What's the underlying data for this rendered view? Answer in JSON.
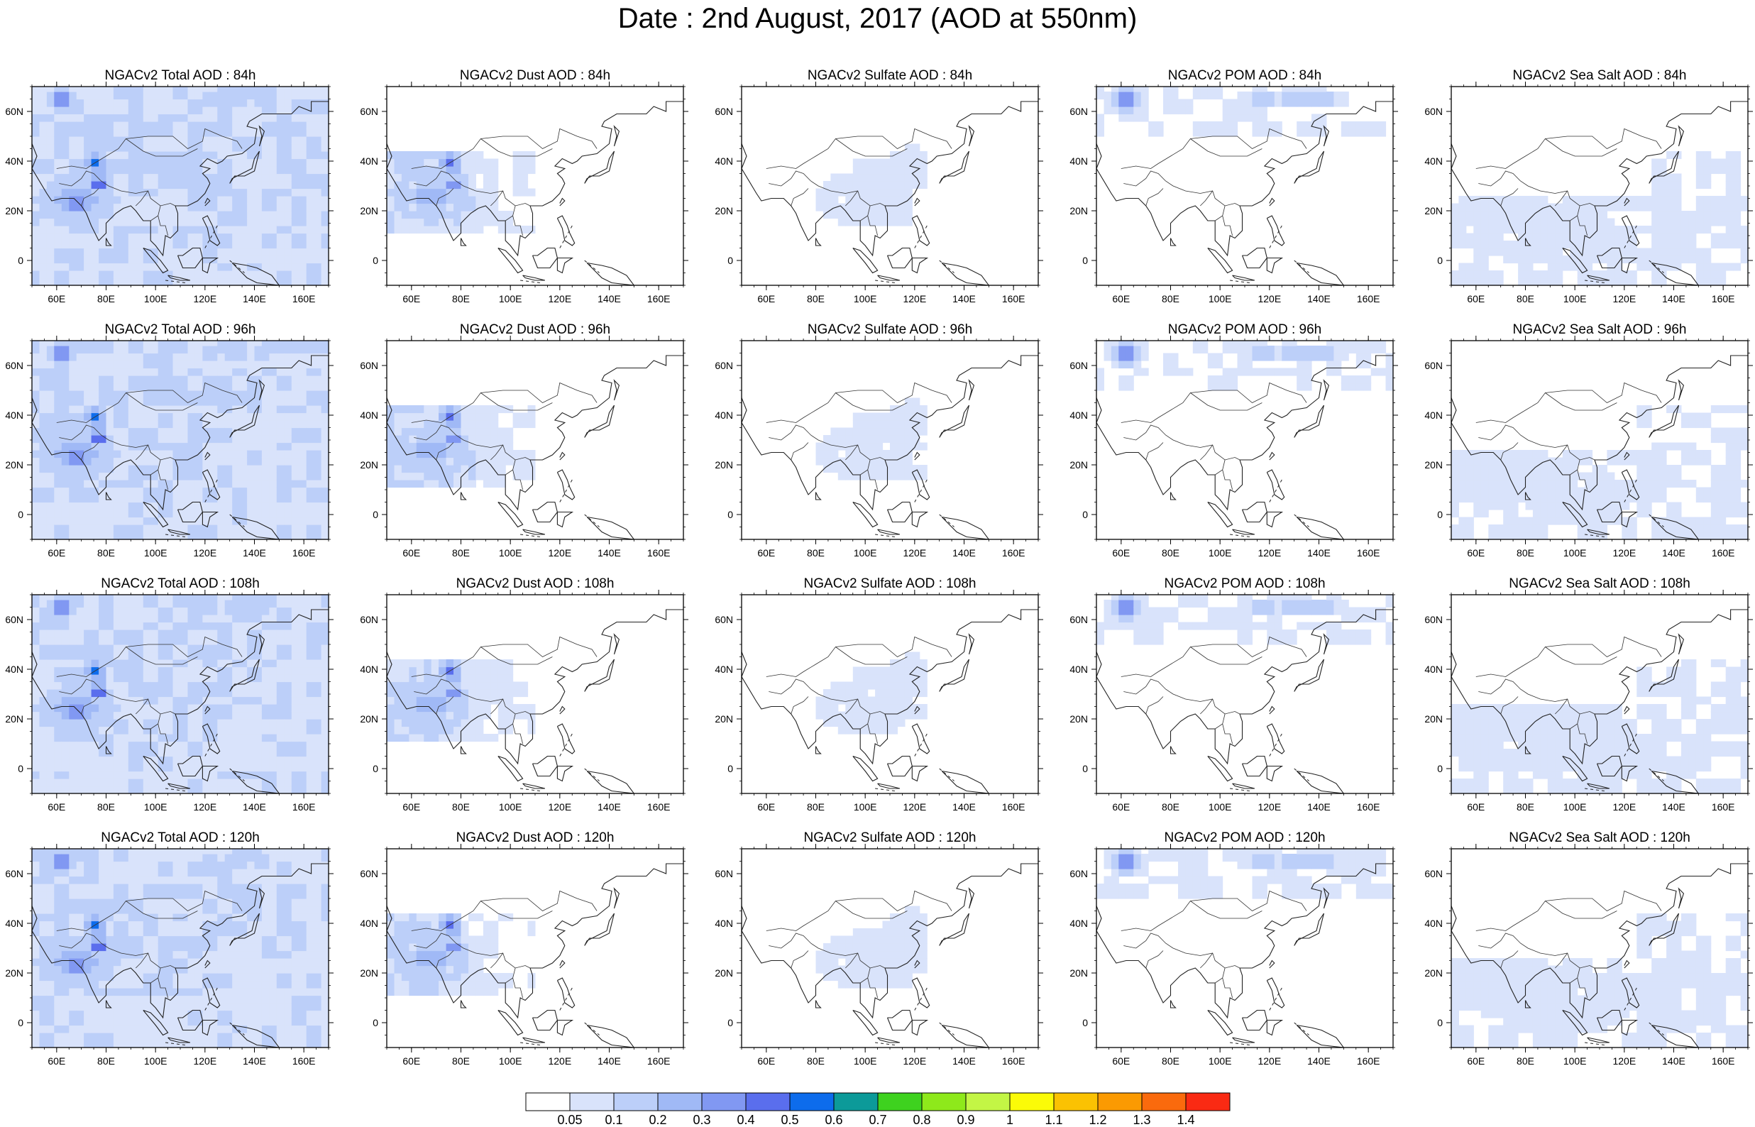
{
  "title": "Date : 2nd August, 2017 (AOD at 550nm)",
  "map_axes": {
    "x_ticks": [
      "60E",
      "80E",
      "100E",
      "120E",
      "140E",
      "160E"
    ],
    "x_tick_degrees": [
      60,
      80,
      100,
      120,
      140,
      160
    ],
    "y_ticks": [
      "60N",
      "40N",
      "20N",
      "0"
    ],
    "y_tick_degrees": [
      60,
      40,
      20,
      0
    ],
    "lon_range": [
      50,
      170
    ],
    "lat_range": [
      -10,
      70
    ]
  },
  "panels": [
    {
      "title": "NGACv2 Total AOD : 84h",
      "species": "total"
    },
    {
      "title": "NGACv2 Dust AOD : 84h",
      "species": "dust"
    },
    {
      "title": "NGACv2 Sulfate AOD : 84h",
      "species": "sulfate"
    },
    {
      "title": "NGACv2 POM AOD : 84h",
      "species": "pom"
    },
    {
      "title": "NGACv2 Sea Salt AOD : 84h",
      "species": "seasalt"
    },
    {
      "title": "NGACv2 Total AOD : 96h",
      "species": "total"
    },
    {
      "title": "NGACv2 Dust AOD : 96h",
      "species": "dust"
    },
    {
      "title": "NGACv2 Sulfate AOD : 96h",
      "species": "sulfate"
    },
    {
      "title": "NGACv2 POM AOD : 96h",
      "species": "pom"
    },
    {
      "title": "NGACv2 Sea Salt AOD : 96h",
      "species": "seasalt"
    },
    {
      "title": "NGACv2 Total AOD : 108h",
      "species": "total"
    },
    {
      "title": "NGACv2 Dust AOD : 108h",
      "species": "dust"
    },
    {
      "title": "NGACv2 Sulfate AOD : 108h",
      "species": "sulfate"
    },
    {
      "title": "NGACv2 POM AOD : 108h",
      "species": "pom"
    },
    {
      "title": "NGACv2 Sea Salt AOD : 108h",
      "species": "seasalt"
    },
    {
      "title": "NGACv2 Total AOD : 120h",
      "species": "total"
    },
    {
      "title": "NGACv2 Dust AOD : 120h",
      "species": "dust"
    },
    {
      "title": "NGACv2 Sulfate AOD : 120h",
      "species": "sulfate"
    },
    {
      "title": "NGACv2 POM AOD : 120h",
      "species": "pom"
    },
    {
      "title": "NGACv2 Sea Salt  AOD : 120h",
      "species": "seasalt"
    }
  ],
  "colorbar": {
    "colors": [
      "#ffffff",
      "#d9e3fb",
      "#bccff9",
      "#a0b9f6",
      "#8198f2",
      "#5a6eed",
      "#0d6cec",
      "#0c9a99",
      "#3ed21f",
      "#8ee91b",
      "#c3f645",
      "#fbfb08",
      "#fbc202",
      "#fb9a02",
      "#fa6a0d",
      "#fa2a13"
    ],
    "labels": [
      "0.05",
      "0.1",
      "0.2",
      "0.3",
      "0.4",
      "0.5",
      "0.6",
      "0.7",
      "0.8",
      "0.9",
      "1",
      "1.1",
      "1.2",
      "1.3",
      "1.4"
    ]
  },
  "hotspots": {
    "total": [
      [
        62,
        65,
        4,
        3,
        5
      ],
      [
        76,
        39,
        3,
        3,
        6
      ],
      [
        77,
        31,
        3,
        2,
        6
      ],
      [
        68,
        24,
        10,
        6,
        4
      ],
      [
        132,
        65,
        10,
        2,
        3
      ]
    ],
    "dust": [
      [
        76,
        39,
        3,
        3,
        5
      ],
      [
        77,
        31,
        3,
        2,
        5
      ],
      [
        68,
        26,
        10,
        7,
        3
      ]
    ],
    "sulfate": [
      [
        100,
        25,
        10,
        6,
        1
      ],
      [
        118,
        38,
        4,
        4,
        1
      ]
    ],
    "pom": [
      [
        62,
        65,
        4,
        3,
        5
      ],
      [
        130,
        65,
        12,
        2,
        3
      ]
    ],
    "seasalt": [
      [
        70,
        15,
        14,
        6,
        1
      ],
      [
        100,
        8,
        12,
        5,
        1
      ]
    ]
  }
}
